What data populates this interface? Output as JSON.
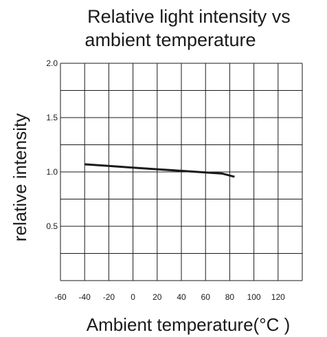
{
  "chart_data": {
    "type": "line",
    "title_lines": [
      "Relative light intensity vs",
      "ambient temperature"
    ],
    "xlabel": "Ambient temperature(°C )",
    "ylabel": "relative intensity",
    "xlim": [
      -60,
      140
    ],
    "ylim": [
      0,
      2.0
    ],
    "x_ticks": [
      -60,
      -40,
      -20,
      0,
      20,
      40,
      60,
      80,
      100,
      120
    ],
    "y_ticks": [
      "0.5",
      "1.0",
      "1.5",
      "2.0"
    ],
    "grid": true,
    "legend": "none",
    "series": [
      {
        "x": [
          -40,
          -20,
          0,
          20,
          40,
          60,
          74,
          84
        ],
        "y": [
          1.07,
          1.055,
          1.04,
          1.025,
          1.01,
          0.995,
          0.985,
          0.955
        ],
        "color": "#1a1a1a"
      }
    ]
  }
}
